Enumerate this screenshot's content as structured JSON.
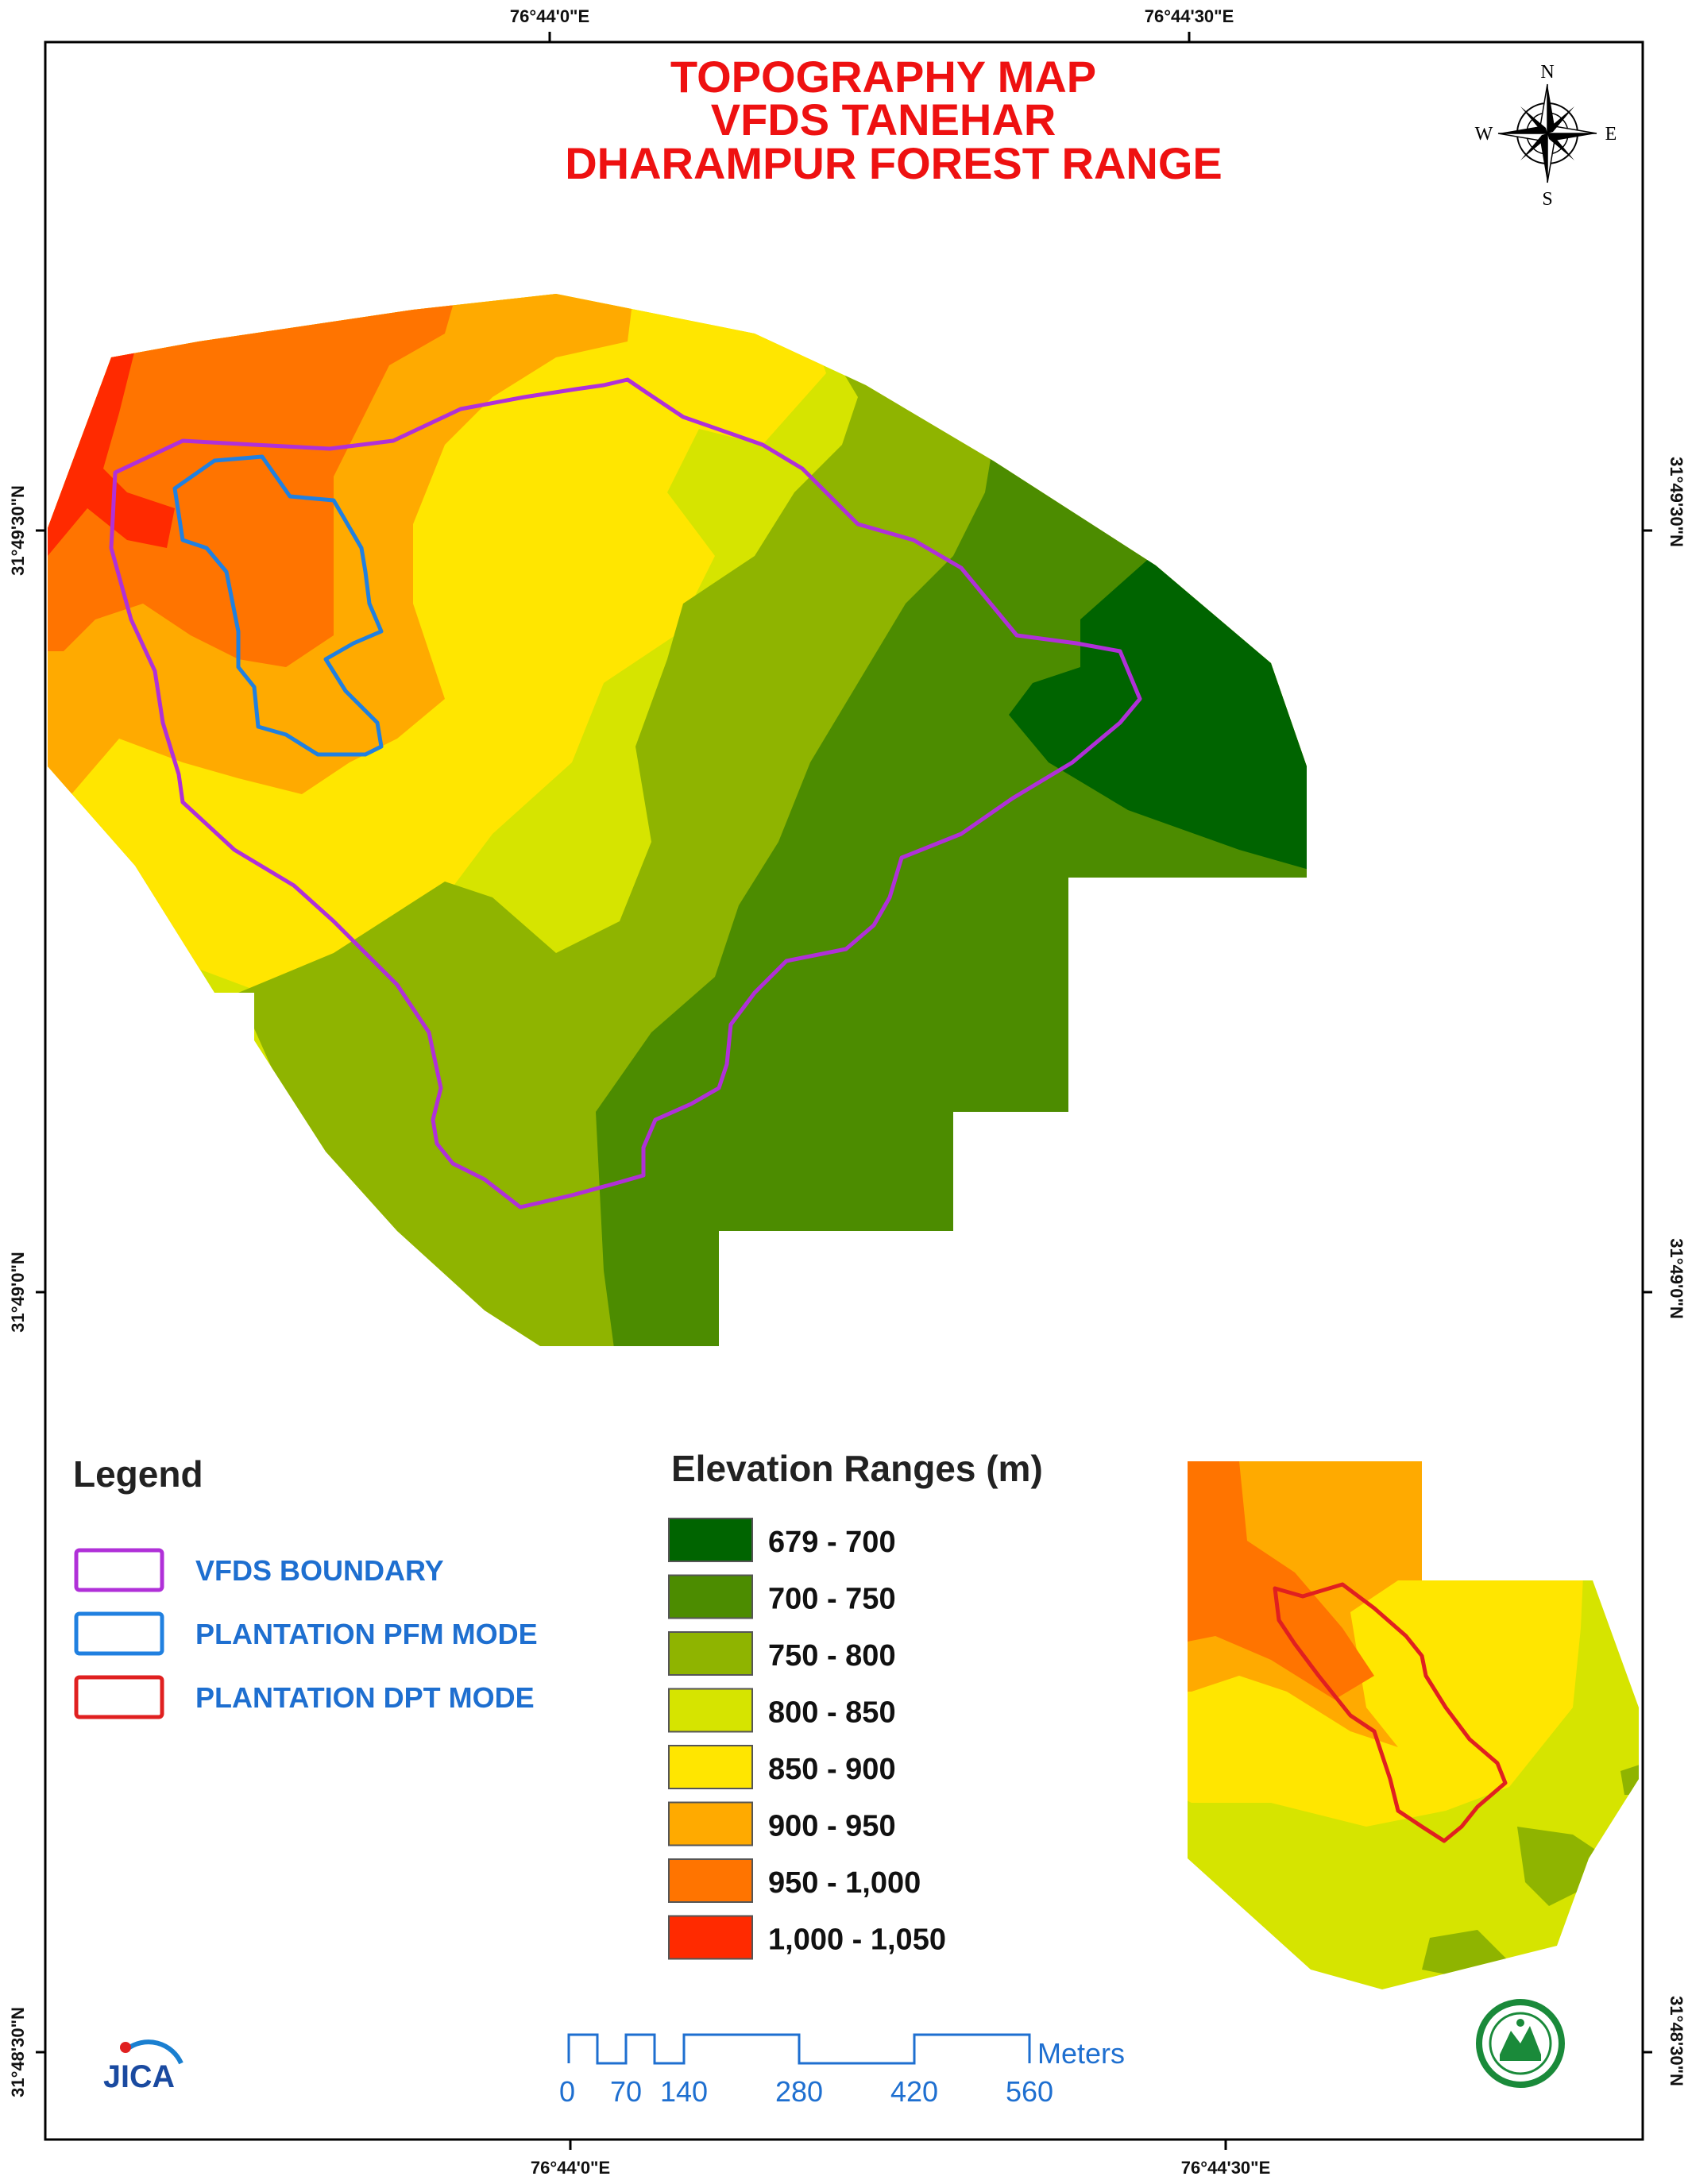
{
  "title": {
    "line1": "TOPOGRAPHY MAP",
    "line2": "VFDS TANEHAR",
    "line3": "DHARAMPUR FOREST RANGE"
  },
  "graticule": {
    "top": [
      "76°44'0\"E",
      "76°44'30\"E"
    ],
    "bottom": [
      "76°44'0\"E",
      "76°44'30\"E"
    ],
    "left": [
      "31°49'30\"N",
      "31°49'0\"N",
      "31°48'30\"N"
    ],
    "right": [
      "31°49'30\"N",
      "31°49'0\"N",
      "31°48'30\"N"
    ]
  },
  "compass": {
    "n": "N",
    "s": "S",
    "e": "E",
    "w": "W",
    "icon": "compass-rose-icon"
  },
  "legend": {
    "heading": "Legend",
    "items": [
      {
        "label": "VFDS BOUNDARY",
        "color": "#b030d8"
      },
      {
        "label": "PLANTATION PFM MODE",
        "color": "#2080e0"
      },
      {
        "label": "PLANTATION DPT MODE",
        "color": "#e02020"
      }
    ]
  },
  "elevation": {
    "heading": "Elevation Ranges (m)",
    "classes": [
      {
        "label": "679 - 700",
        "color": "#006400"
      },
      {
        "label": "700 - 750",
        "color": "#4c8c00"
      },
      {
        "label": "750 - 800",
        "color": "#8fb400"
      },
      {
        "label": "800 - 850",
        "color": "#d6e400"
      },
      {
        "label": "850 - 900",
        "color": "#ffe600"
      },
      {
        "label": "900 - 950",
        "color": "#ffaa00"
      },
      {
        "label": "950 - 1,000",
        "color": "#ff7400"
      },
      {
        "label": "1,000 - 1,050",
        "color": "#ff2a00"
      }
    ]
  },
  "scale_bar": {
    "ticks": [
      "0",
      "70",
      "140",
      "280",
      "420",
      "560"
    ],
    "unit": "Meters",
    "color": "#1e6fd0"
  },
  "logos": {
    "jica": "JICA",
    "forest_dept_icon": "forest-department-seal-icon"
  }
}
